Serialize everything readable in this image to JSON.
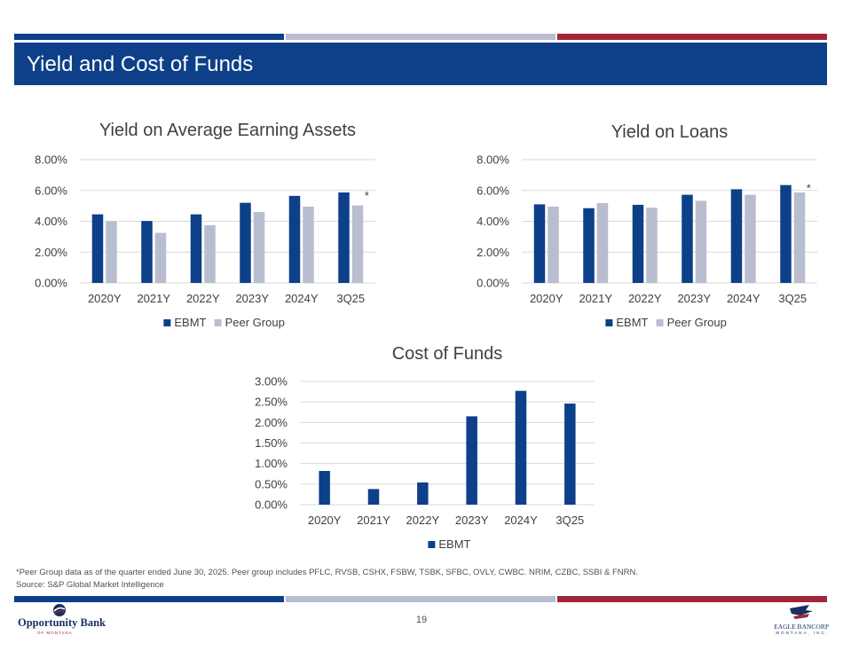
{
  "header": {
    "title": "Yield and Cost of Funds"
  },
  "colors": {
    "navy": "#0d4088",
    "gray": "#b8bdd0",
    "red": "#a0273a"
  },
  "chart_data": [
    {
      "type": "bar",
      "title": "Yield on Average Earning Assets",
      "categories": [
        "2020Y",
        "2021Y",
        "2022Y",
        "2023Y",
        "2024Y",
        "3Q25"
      ],
      "series": [
        {
          "name": "EBMT",
          "values": [
            4.45,
            4.02,
            4.45,
            5.2,
            5.65,
            5.87
          ]
        },
        {
          "name": "Peer Group",
          "values": [
            4.0,
            3.25,
            3.75,
            4.6,
            4.95,
            5.03
          ]
        }
      ],
      "y_ticks": [
        "0.00%",
        "2.00%",
        "4.00%",
        "6.00%",
        "8.00%"
      ],
      "ylim": [
        0,
        8
      ],
      "annotation": {
        "text": "*",
        "category": "3Q25"
      },
      "legend": [
        "EBMT",
        "Peer Group"
      ]
    },
    {
      "type": "bar",
      "title": "Yield on Loans",
      "categories": [
        "2020Y",
        "2021Y",
        "2022Y",
        "2023Y",
        "2024Y",
        "3Q25"
      ],
      "series": [
        {
          "name": "EBMT",
          "values": [
            5.1,
            4.85,
            5.07,
            5.72,
            6.08,
            6.35
          ]
        },
        {
          "name": "Peer Group",
          "values": [
            4.95,
            5.18,
            4.88,
            5.33,
            5.72,
            5.87
          ]
        }
      ],
      "y_ticks": [
        "0.00%",
        "2.00%",
        "4.00%",
        "6.00%",
        "8.00%"
      ],
      "ylim": [
        0,
        8
      ],
      "annotation": {
        "text": "*",
        "category": "3Q25"
      },
      "legend": [
        "EBMT",
        "Peer Group"
      ]
    },
    {
      "type": "bar",
      "title": "Cost of Funds",
      "categories": [
        "2020Y",
        "2021Y",
        "2022Y",
        "2023Y",
        "2024Y",
        "3Q25"
      ],
      "series": [
        {
          "name": "EBMT",
          "values": [
            0.82,
            0.38,
            0.54,
            2.15,
            2.77,
            2.46
          ]
        }
      ],
      "y_ticks": [
        "0.00%",
        "0.50%",
        "1.00%",
        "1.50%",
        "2.00%",
        "2.50%",
        "3.00%"
      ],
      "ylim": [
        0,
        3
      ],
      "legend": [
        "EBMT"
      ]
    }
  ],
  "footnotes": {
    "peer_note": "*Peer Group data as of the quarter ended June 30, 2025. Peer group includes PFLC, RVSB, CSHX, FSBW, TSBK, SFBC, OVLY, CWBC. NRIM, CZBC, SSBI & FNRN.",
    "source": "Source: S&P Global Market Intelligence"
  },
  "footer": {
    "page_number": "19",
    "logo_left_name": "Opportunity Bank",
    "logo_left_sub": "OF MONTANA",
    "logo_right_name": "EAGLE BANCORP",
    "logo_right_sub": "MONTANA, INC."
  }
}
